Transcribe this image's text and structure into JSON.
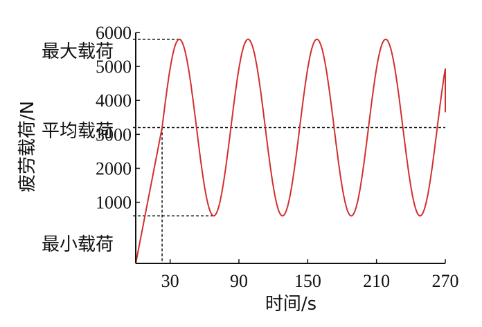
{
  "chart_data": {
    "type": "line",
    "xlabel": "时间/s",
    "ylabel": "疲劳载荷/N",
    "xlim": [
      0,
      270
    ],
    "ylim": [
      -800,
      6000
    ],
    "x_ticks": [
      30,
      90,
      150,
      210,
      270
    ],
    "y_ticks": [
      1000,
      2000,
      3000,
      4000,
      5000,
      6000
    ],
    "grid": false,
    "legend": "none",
    "annotations": {
      "max_label": "最大载荷",
      "mean_label": "平均载荷",
      "min_label": "最小载荷"
    },
    "series": [
      {
        "color": "#d32f2f",
        "ramp": {
          "x": [
            0,
            23
          ],
          "y": [
            -800,
            3200
          ]
        },
        "sine": {
          "mean": 3200,
          "amplitude": 2600,
          "period": 60,
          "phase_start_x": 23,
          "end_x": 270,
          "end_y": 3650
        }
      }
    ],
    "reference_lines": {
      "max_y": 5800,
      "mean_y": 3200,
      "min_y": 600,
      "mean_crossing_x": 23
    }
  }
}
